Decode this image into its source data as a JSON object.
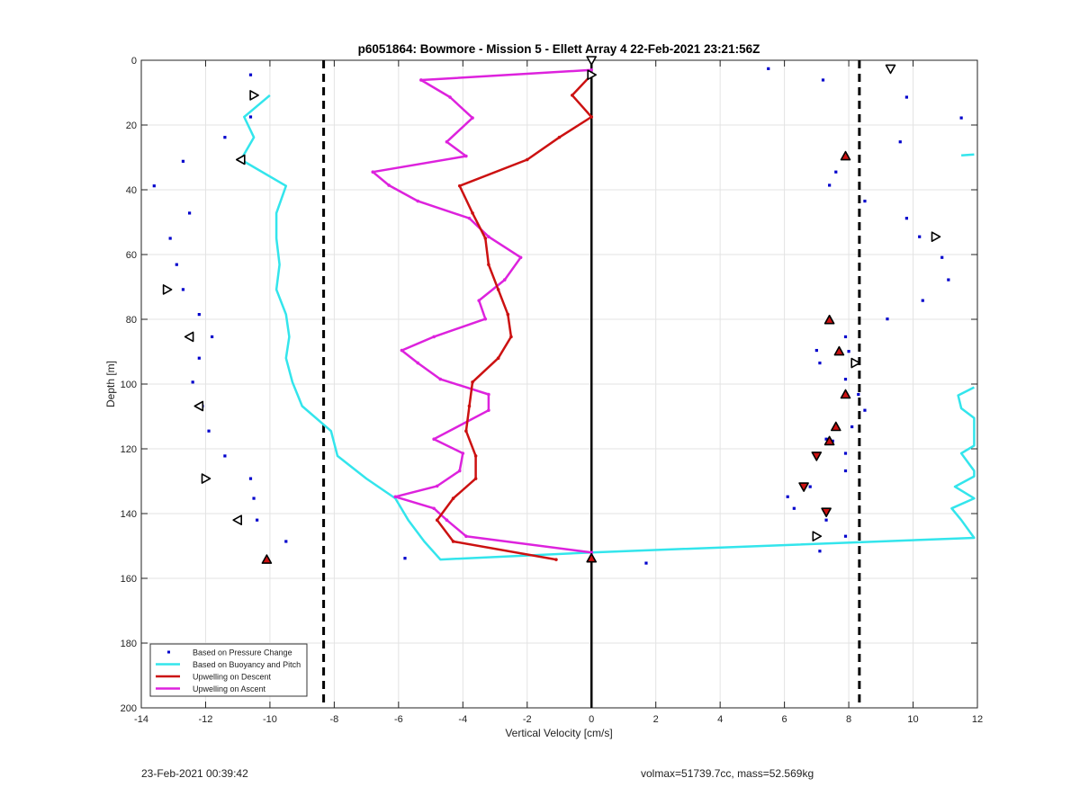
{
  "footer": {
    "timestamp": "23-Feb-2021 00:39:42",
    "volmax_mass": "volmax=51739.7cc, mass=52.569kg"
  },
  "chart_data": {
    "type": "line",
    "title": "p6051864: Bowmore - Mission 5 - Ellett Array 4 22-Feb-2021 23:21:56Z",
    "xlabel": "Vertical Velocity [cm/s]",
    "ylabel": "Depth [m]",
    "xlim": [
      -14,
      12
    ],
    "ylim": [
      0,
      200
    ],
    "y_reversed": true,
    "grid": true,
    "x_ticks": [
      -14,
      -12,
      -10,
      -8,
      -6,
      -4,
      -2,
      0,
      2,
      4,
      6,
      8,
      10,
      12
    ],
    "y_ticks": [
      0,
      20,
      40,
      60,
      80,
      100,
      120,
      140,
      160,
      180,
      200
    ],
    "legend_placement": "bottom-left",
    "colors": {
      "pressure": "#0000cc",
      "buoyancy": "#33e5ec",
      "descent": "#cc1111",
      "ascent": "#dd22dd",
      "reference": "#000000"
    },
    "reference_lines": {
      "zero_x": 0,
      "dashed_x": [
        -8.33,
        8.33
      ]
    },
    "series": [
      {
        "name": "Based on Pressure Change",
        "style": "dots",
        "points": [
          [
            -10.6,
            4.5
          ],
          [
            -10.6,
            17.5
          ],
          [
            -11.4,
            23.8
          ],
          [
            -12.7,
            31.2
          ],
          [
            -13.6,
            38.8
          ],
          [
            -12.5,
            47.2
          ],
          [
            -13.1,
            55
          ],
          [
            -12.9,
            63.1
          ],
          [
            -12.7,
            70.8
          ],
          [
            -12.2,
            78.5
          ],
          [
            -11.8,
            85.4
          ],
          [
            -12.2,
            92
          ],
          [
            -12.4,
            99.4
          ],
          [
            -12.1,
            106.8
          ],
          [
            -11.9,
            114.5
          ],
          [
            -11.4,
            122.2
          ],
          [
            -10.6,
            129.2
          ],
          [
            -10.5,
            135.3
          ],
          [
            -10.4,
            142
          ],
          [
            -9.5,
            148.6
          ],
          [
            -10.1,
            154.2
          ],
          [
            -5.8,
            153.8
          ],
          [
            0,
            154.6
          ],
          [
            1.7,
            155.3
          ],
          [
            5.5,
            2.6
          ],
          [
            7.2,
            6.1
          ],
          [
            9.8,
            11.4
          ],
          [
            11.5,
            17.8
          ],
          [
            9.6,
            25.2
          ],
          [
            7.9,
            29.6
          ],
          [
            7.6,
            34.5
          ],
          [
            7.4,
            38.6
          ],
          [
            8.5,
            43.5
          ],
          [
            9.8,
            48.8
          ],
          [
            10.2,
            54.5
          ],
          [
            10.9,
            60.9
          ],
          [
            11.1,
            67.8
          ],
          [
            10.3,
            74.2
          ],
          [
            9.2,
            79.9
          ],
          [
            7.4,
            80.2
          ],
          [
            7.9,
            85.4
          ],
          [
            7,
            89.6
          ],
          [
            8,
            89.9
          ],
          [
            7.1,
            93.5
          ],
          [
            7.9,
            98.5
          ],
          [
            8.3,
            103.2
          ],
          [
            8.5,
            108.1
          ],
          [
            8.1,
            113.2
          ],
          [
            7.3,
            117
          ],
          [
            7.5,
            117.6
          ],
          [
            7.9,
            121.4
          ],
          [
            7.9,
            126.8
          ],
          [
            6.6,
            131.5
          ],
          [
            6.8,
            131.7
          ],
          [
            6.1,
            134.8
          ],
          [
            6.3,
            138.4
          ],
          [
            7.3,
            142
          ],
          [
            7.9,
            147
          ],
          [
            7.1,
            151.6
          ]
        ]
      },
      {
        "name": "Based on Buoyancy and Pitch",
        "style": "line",
        "segments": [
          [
            [
              -10,
              10.8
            ],
            [
              -10.8,
              17.5
            ],
            [
              -10.5,
              23.8
            ],
            [
              -10.9,
              30.7
            ],
            [
              -9.5,
              38.8
            ],
            [
              -9.8,
              47.2
            ],
            [
              -9.8,
              55
            ],
            [
              -9.7,
              63.1
            ],
            [
              -9.8,
              70.8
            ],
            [
              -9.5,
              78.5
            ],
            [
              -9.4,
              85.4
            ],
            [
              -9.5,
              92
            ],
            [
              -9.3,
              99.4
            ],
            [
              -9,
              106.8
            ],
            [
              -8.1,
              114.5
            ],
            [
              -7.9,
              122.2
            ],
            [
              -7,
              129.2
            ],
            [
              -6.1,
              135.3
            ],
            [
              -5.7,
              142
            ],
            [
              -5.2,
              148.6
            ],
            [
              -4.7,
              154.2
            ],
            [
              0,
              152
            ],
            [
              11.9,
              147.5
            ],
            [
              11.5,
              142
            ],
            [
              11.2,
              138.4
            ],
            [
              11.9,
              135.3
            ],
            [
              11.3,
              131.7
            ],
            [
              11.9,
              128.5
            ],
            [
              11.9,
              126.8
            ],
            [
              11.5,
              121.4
            ],
            [
              11.9,
              119
            ],
            [
              11.9,
              110.5
            ],
            [
              11.5,
              107.5
            ],
            [
              11.4,
              103.5
            ],
            [
              11.9,
              101
            ]
          ],
          [
            [
              11.9,
              29.1
            ],
            [
              11.5,
              29.4
            ]
          ]
        ]
      },
      {
        "name": "Upwelling on Descent",
        "style": "line-markers",
        "points": [
          [
            0,
            4.5
          ],
          [
            -0.6,
            10.8
          ],
          [
            0,
            17.5
          ],
          [
            -1,
            23.8
          ],
          [
            -2,
            30.7
          ],
          [
            -4.1,
            38.8
          ],
          [
            -3.7,
            47.2
          ],
          [
            -3.3,
            55
          ],
          [
            -3.2,
            63.1
          ],
          [
            -2.9,
            70.8
          ],
          [
            -2.6,
            78.5
          ],
          [
            -2.5,
            85.4
          ],
          [
            -2.9,
            92
          ],
          [
            -3.7,
            99.4
          ],
          [
            -3.8,
            106.8
          ],
          [
            -3.9,
            114.5
          ],
          [
            -3.6,
            122.2
          ],
          [
            -3.6,
            129.2
          ],
          [
            -4.3,
            135.3
          ],
          [
            -4.8,
            142
          ],
          [
            -4.3,
            148.6
          ],
          [
            -1.1,
            154.2
          ]
        ]
      },
      {
        "name": "Upwelling on Ascent",
        "style": "line-markers",
        "points": [
          [
            0,
            3
          ],
          [
            -5.3,
            6.1
          ],
          [
            -4.4,
            11.4
          ],
          [
            -3.7,
            17.8
          ],
          [
            -4.5,
            25.2
          ],
          [
            -3.9,
            29.6
          ],
          [
            -6.8,
            34.5
          ],
          [
            -6.3,
            38.6
          ],
          [
            -5.4,
            43.5
          ],
          [
            -3.8,
            48.8
          ],
          [
            -3.2,
            54.5
          ],
          [
            -2.2,
            60.9
          ],
          [
            -2.7,
            67.8
          ],
          [
            -3.5,
            74.2
          ],
          [
            -3.3,
            79.9
          ],
          [
            -4.9,
            85.4
          ],
          [
            -5.9,
            89.6
          ],
          [
            -5.4,
            93.5
          ],
          [
            -4.7,
            98.5
          ],
          [
            -3.2,
            103.2
          ],
          [
            -3.2,
            108.1
          ],
          [
            -4.9,
            117
          ],
          [
            -4,
            121.4
          ],
          [
            -4.1,
            126.8
          ],
          [
            -4.8,
            131.5
          ],
          [
            -6.1,
            134.8
          ],
          [
            -4.9,
            138.4
          ],
          [
            -4.5,
            142
          ],
          [
            -3.9,
            147
          ],
          [
            0,
            152
          ]
        ]
      }
    ],
    "markers": [
      {
        "shape": "tri-down",
        "filled": false,
        "points": [
          [
            0,
            0
          ],
          [
            9.3,
            2.6
          ]
        ]
      },
      {
        "shape": "tri-right",
        "filled": false,
        "points": [
          [
            -10.5,
            10.8
          ],
          [
            0,
            4.5
          ],
          [
            10.7,
            54.5
          ],
          [
            -13.2,
            70.8
          ],
          [
            8.2,
            93.5
          ],
          [
            -12,
            129.2
          ],
          [
            7,
            147
          ]
        ]
      },
      {
        "shape": "tri-left",
        "filled": false,
        "points": [
          [
            -10.9,
            30.7
          ],
          [
            -12.5,
            85.4
          ],
          [
            -12.2,
            106.8
          ],
          [
            -11,
            142
          ]
        ]
      },
      {
        "shape": "tri-up",
        "filled": true,
        "points": [
          [
            7.9,
            29.6
          ],
          [
            7.4,
            80.2
          ],
          [
            7.7,
            89.9
          ],
          [
            7.9,
            103.2
          ],
          [
            7.6,
            113.2
          ],
          [
            7.4,
            117.6
          ],
          [
            -10.1,
            154.2
          ],
          [
            0,
            153.8
          ]
        ]
      },
      {
        "shape": "tri-down",
        "filled": true,
        "points": [
          [
            7,
            122.2
          ],
          [
            6.6,
            131.7
          ],
          [
            7.3,
            139.5
          ]
        ]
      }
    ]
  }
}
